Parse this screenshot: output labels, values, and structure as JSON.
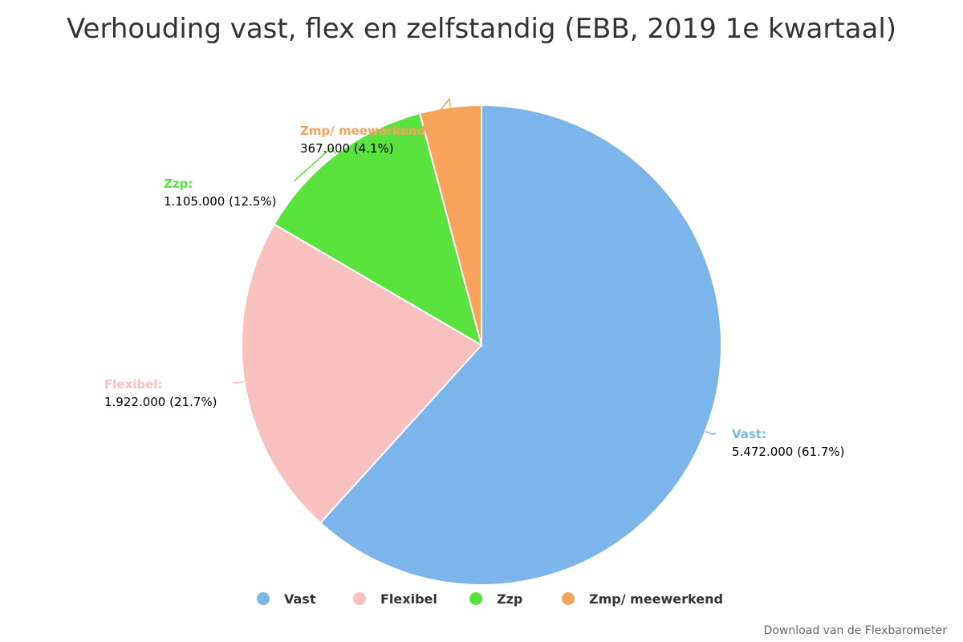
{
  "chart_data": {
    "type": "pie",
    "title": "Verhouding vast, flex en zelfstandig (EBB, 2019 1e kwartaal)",
    "slices": [
      {
        "name": "Vast",
        "label": "Vast:",
        "value": 5472000,
        "value_text": "5.472.000 (61.7%)",
        "percent": 61.7,
        "color": "#7cb5ec"
      },
      {
        "name": "Flexibel",
        "label": "Flexibel:",
        "value": 1922000,
        "value_text": "1.922.000 (21.7%)",
        "percent": 21.7,
        "color": "#f9c0c0"
      },
      {
        "name": "Zzp",
        "label": "Zzp:",
        "value": 1105000,
        "value_text": "1.105.000 (12.5%)",
        "percent": 12.5,
        "color": "#5ae33f"
      },
      {
        "name": "Zmp/ meewerkend",
        "label": "Zmp/ meewerkend:",
        "value": 367000,
        "value_text": "367.000 (4.1%)",
        "percent": 4.1,
        "color": "#f7a35c"
      }
    ],
    "legend": [
      "Vast",
      "Flexibel",
      "Zzp",
      "Zmp/ meewerkend"
    ],
    "legend_position": "bottom"
  },
  "credit": "Download van de Flexbarometer"
}
